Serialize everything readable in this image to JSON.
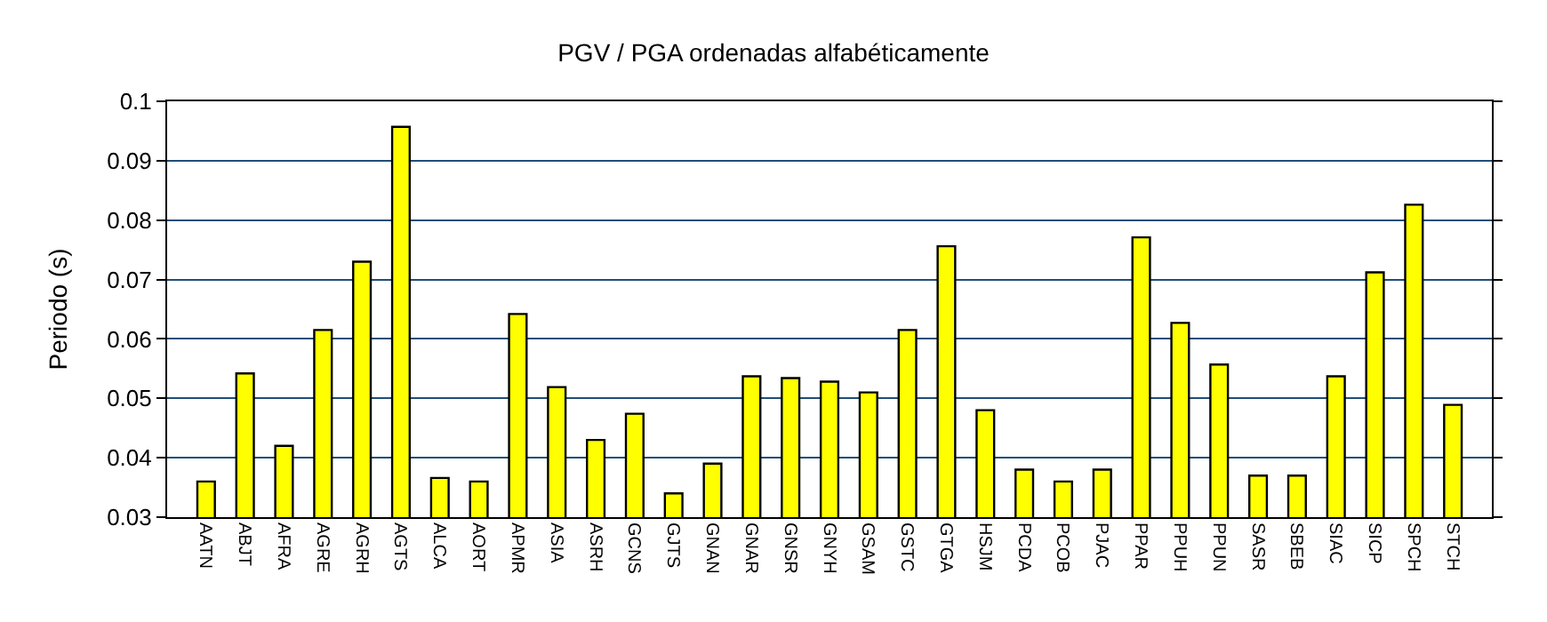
{
  "chart_data": {
    "type": "bar",
    "title": "PGV / PGA ordenadas alfabéticamente",
    "ylabel": "Periodo (s)",
    "categories": [
      "AATN",
      "ABJT",
      "AFRA",
      "AGRE",
      "AGRH",
      "AGTS",
      "ALCA",
      "AORT",
      "APMR",
      "ASIA",
      "ASRH",
      "GCNS",
      "GJTS",
      "GNAN",
      "GNAR",
      "GNSR",
      "GNYH",
      "GSAM",
      "GSTC",
      "GTGA",
      "HSJM",
      "PCDA",
      "PCOB",
      "PJAC",
      "PPAR",
      "PPUH",
      "PPUN",
      "SASR",
      "SBEB",
      "SIAC",
      "SICP",
      "SPCH",
      "STCH"
    ],
    "values": [
      0.036,
      0.0542,
      0.042,
      0.0615,
      0.073,
      0.0957,
      0.0366,
      0.036,
      0.0642,
      0.0519,
      0.043,
      0.0474,
      0.034,
      0.039,
      0.0537,
      0.0534,
      0.0528,
      0.051,
      0.0615,
      0.0756,
      0.048,
      0.038,
      0.036,
      0.038,
      0.0771,
      0.0627,
      0.0557,
      0.037,
      0.037,
      0.0537,
      0.0712,
      0.0826,
      0.0489
    ],
    "color": "#ffff00",
    "ylim": [
      0.03,
      0.1
    ],
    "yticks": [
      0.03,
      0.04,
      0.05,
      0.06,
      0.07,
      0.08,
      0.09,
      0.1
    ],
    "grid": "y"
  }
}
